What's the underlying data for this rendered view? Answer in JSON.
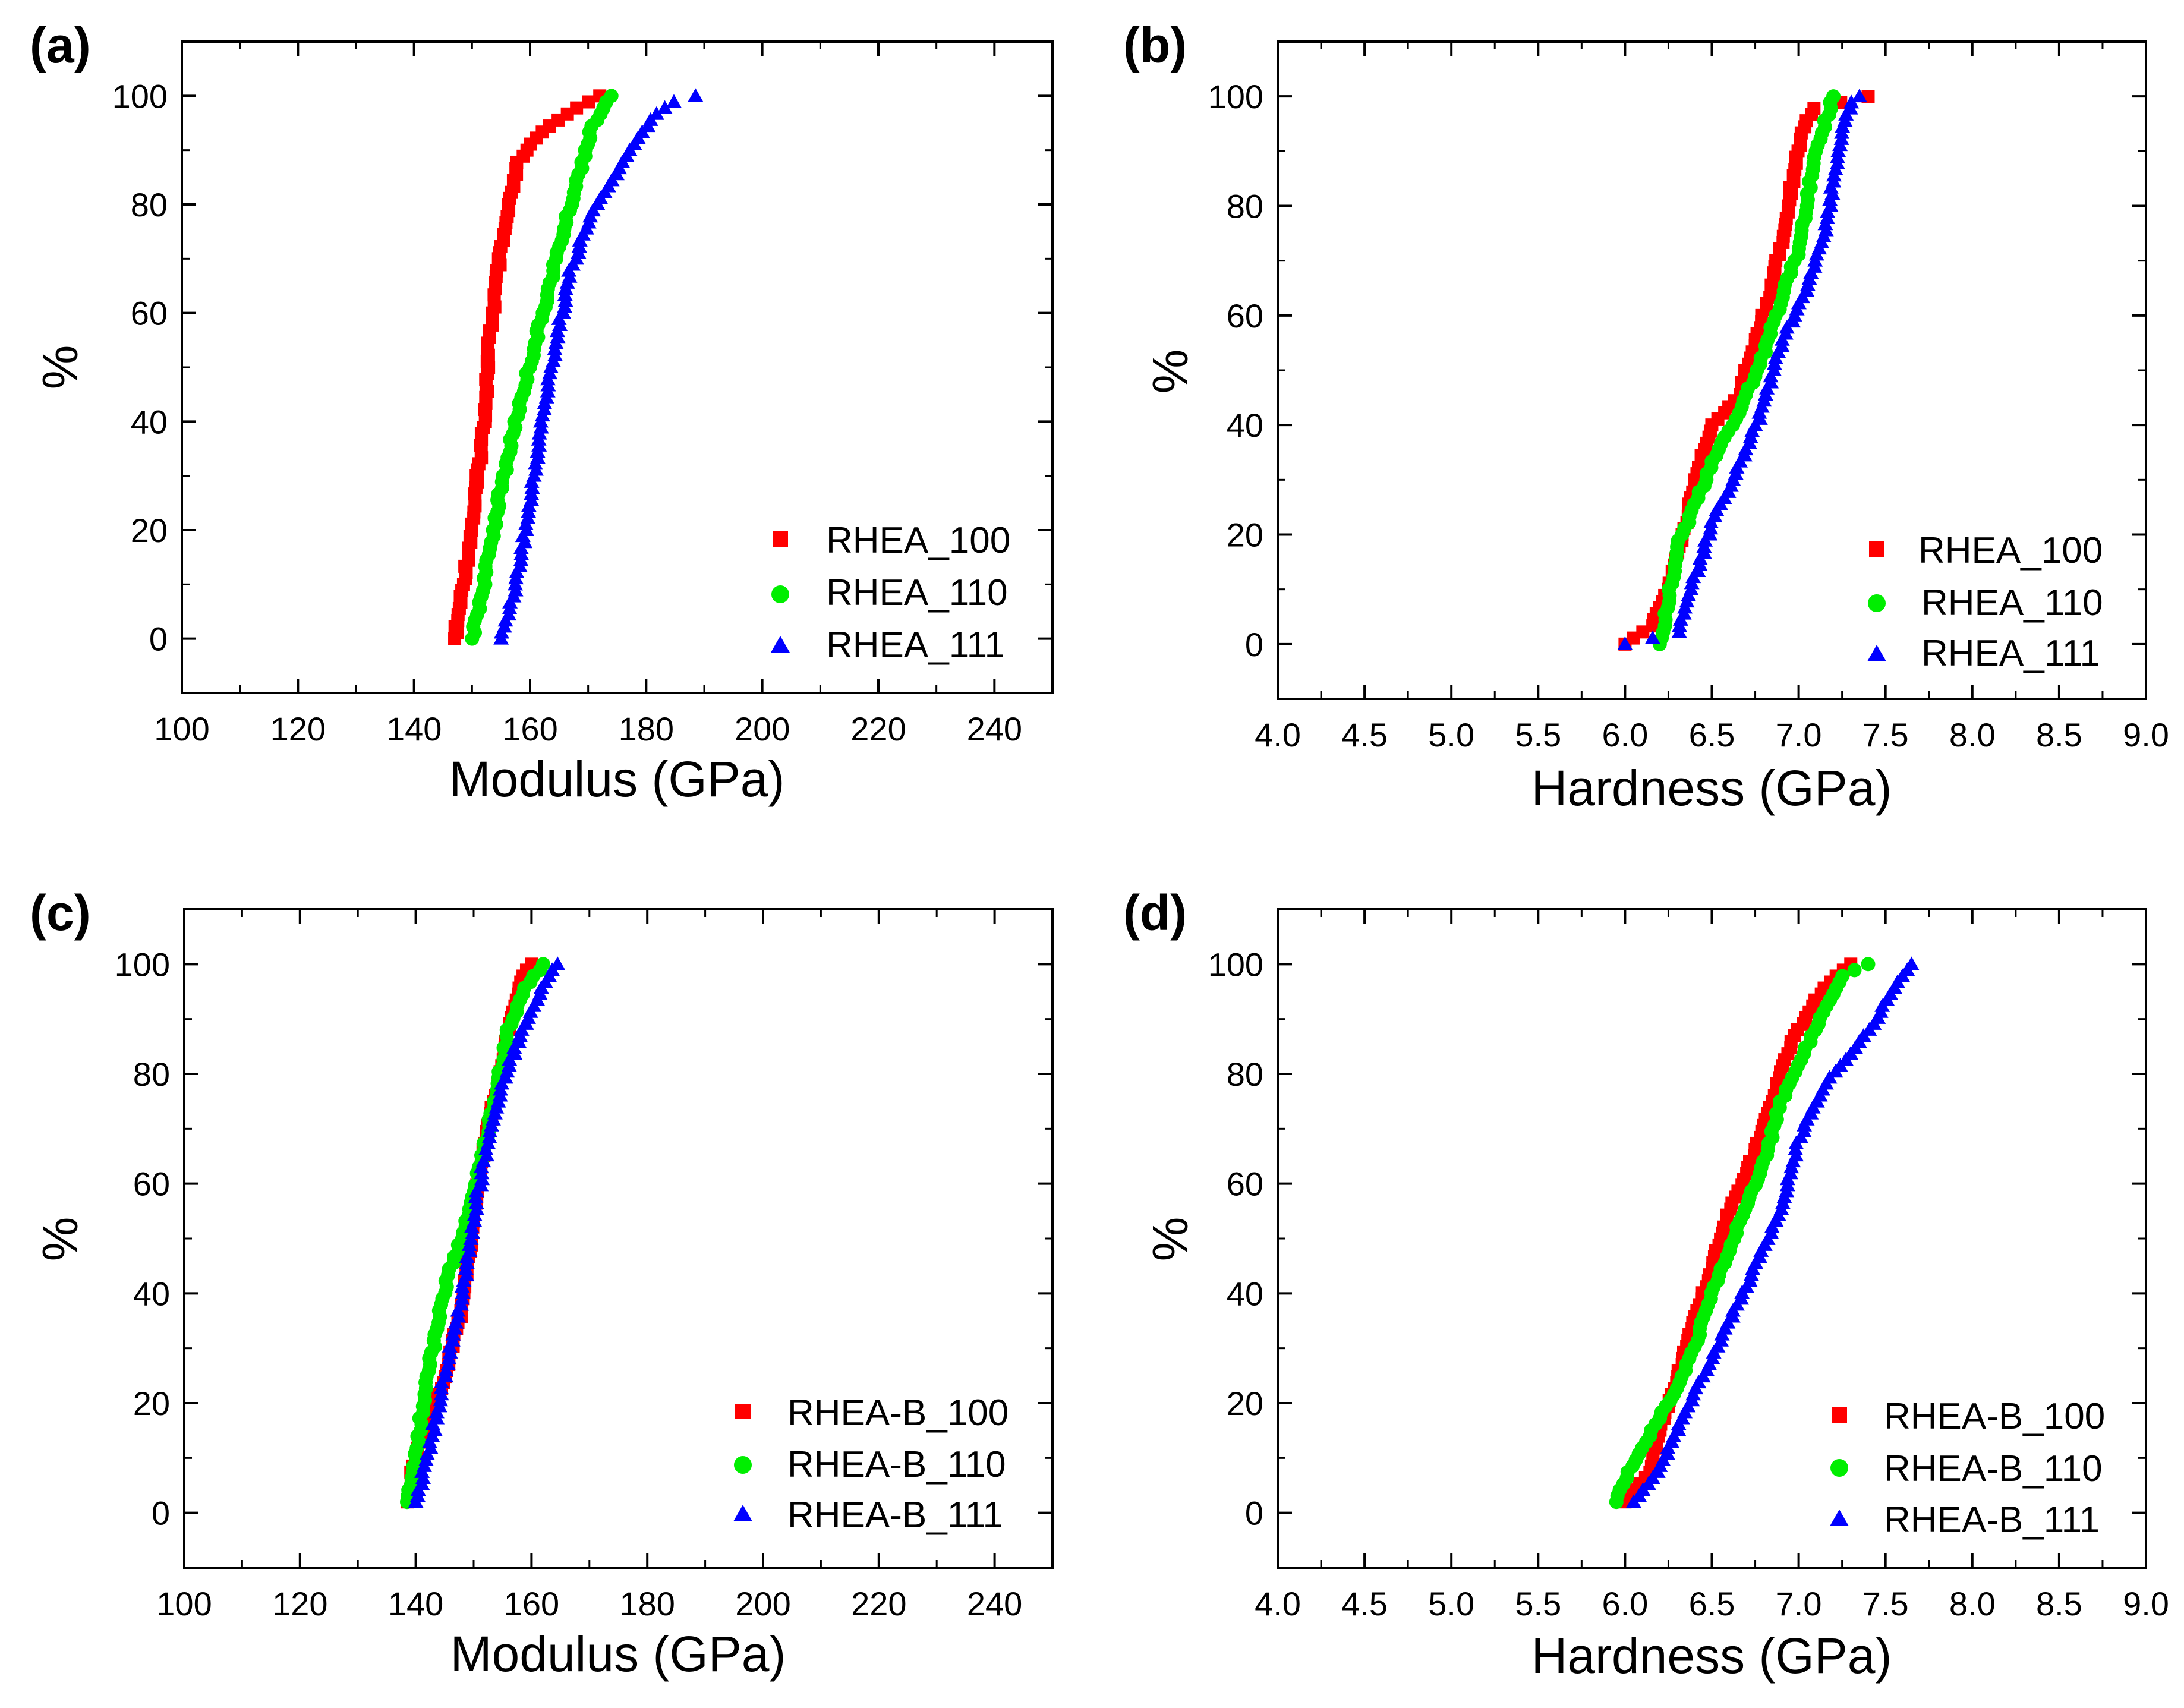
{
  "figure": {
    "colors": {
      "series1": "#ff0000",
      "series2": "#00ee00",
      "series3": "#0000ff"
    }
  },
  "chart_data": [
    {
      "panel": "(a)",
      "type": "scatter",
      "xlabel": "Modulus (GPa)",
      "ylabel": "%",
      "xlim": [
        100,
        250
      ],
      "ylim": [
        -10,
        110
      ],
      "xticks": [
        "100",
        "120",
        "140",
        "160",
        "180",
        "200",
        "220",
        "240"
      ],
      "yticks": [
        "0",
        "20",
        "40",
        "60",
        "80",
        "100"
      ],
      "xtick_values": [
        100,
        120,
        140,
        160,
        180,
        200,
        220,
        240
      ],
      "ytick_values": [
        0,
        20,
        40,
        60,
        80,
        100
      ],
      "legend_position": "bottom-right",
      "series": [
        {
          "name": "RHEA_100",
          "marker": "square",
          "color": "#ff0000",
          "curve": [
            [
              147.0,
              0
            ],
            [
              148.5,
              10
            ],
            [
              150.5,
              25
            ],
            [
              152.0,
              40
            ],
            [
              153.0,
              55
            ],
            [
              154.5,
              68
            ],
            [
              156.5,
              80
            ],
            [
              158.0,
              88
            ],
            [
              161.0,
              92
            ],
            [
              164.0,
              95
            ],
            [
              167.0,
              97
            ],
            [
              169.0,
              98.5
            ],
            [
              172.0,
              100
            ]
          ]
        },
        {
          "name": "RHEA_110",
          "marker": "circle",
          "color": "#00ee00",
          "curve": [
            [
              150.0,
              0
            ],
            [
              152.0,
              10
            ],
            [
              154.5,
              25
            ],
            [
              157.5,
              40
            ],
            [
              161.0,
              55
            ],
            [
              164.5,
              70
            ],
            [
              167.5,
              82
            ],
            [
              169.5,
              90
            ],
            [
              171.0,
              95
            ],
            [
              174.0,
              100
            ]
          ]
        },
        {
          "name": "RHEA_111",
          "marker": "triangle",
          "color": "#0000ff",
          "curve": [
            [
              155.0,
              0
            ],
            [
              157.5,
              10
            ],
            [
              160.0,
              25
            ],
            [
              162.0,
              40
            ],
            [
              164.5,
              55
            ],
            [
              167.0,
              68
            ],
            [
              170.5,
              78
            ],
            [
              175.0,
              86
            ],
            [
              178.0,
              91
            ],
            [
              181.0,
              96
            ],
            [
              185.0,
              99
            ],
            [
              188.5,
              100
            ]
          ]
        }
      ]
    },
    {
      "panel": "(b)",
      "type": "scatter",
      "xlabel": "Hardness (GPa)",
      "ylabel": "%",
      "xlim": [
        4.0,
        9.0
      ],
      "ylim": [
        -10,
        110
      ],
      "xticks": [
        "4.0",
        "4.5",
        "5.0",
        "5.5",
        "6.0",
        "6.5",
        "7.0",
        "7.5",
        "8.0",
        "8.5",
        "9.0"
      ],
      "yticks": [
        "0",
        "20",
        "40",
        "60",
        "80",
        "100"
      ],
      "xtick_values": [
        4.0,
        4.5,
        5.0,
        5.5,
        6.0,
        6.5,
        7.0,
        7.5,
        8.0,
        8.5,
        9.0
      ],
      "ytick_values": [
        0,
        20,
        40,
        60,
        80,
        100
      ],
      "legend_position": "bottom-right",
      "series": [
        {
          "name": "RHEA_100",
          "marker": "square",
          "color": "#ff0000",
          "curve": [
            [
              6.0,
              0
            ],
            [
              6.15,
              3
            ],
            [
              6.25,
              10
            ],
            [
              6.35,
              22
            ],
            [
              6.42,
              32
            ],
            [
              6.5,
              40
            ],
            [
              6.65,
              45
            ],
            [
              6.75,
              55
            ],
            [
              6.85,
              66
            ],
            [
              6.92,
              76
            ],
            [
              6.97,
              86
            ],
            [
              7.02,
              94
            ],
            [
              7.1,
              98
            ],
            [
              7.4,
              100
            ]
          ]
        },
        {
          "name": "RHEA_110",
          "marker": "circle",
          "color": "#00ee00",
          "curve": [
            [
              6.2,
              0
            ],
            [
              6.25,
              8
            ],
            [
              6.3,
              18
            ],
            [
              6.4,
              25
            ],
            [
              6.5,
              33
            ],
            [
              6.65,
              42
            ],
            [
              6.8,
              53
            ],
            [
              6.9,
              63
            ],
            [
              7.0,
              72
            ],
            [
              7.05,
              82
            ],
            [
              7.12,
              92
            ],
            [
              7.2,
              100
            ]
          ]
        },
        {
          "name": "RHEA_111",
          "marker": "triangle",
          "color": "#0000ff",
          "curve": [
            [
              6.0,
              0
            ],
            [
              6.3,
              2
            ],
            [
              6.38,
              10
            ],
            [
              6.5,
              22
            ],
            [
              6.65,
              32
            ],
            [
              6.78,
              42
            ],
            [
              6.9,
              55
            ],
            [
              7.05,
              65
            ],
            [
              7.15,
              75
            ],
            [
              7.2,
              85
            ],
            [
              7.25,
              93
            ],
            [
              7.3,
              99
            ],
            [
              7.35,
              100
            ]
          ]
        }
      ]
    },
    {
      "panel": "(c)",
      "type": "scatter",
      "xlabel": "Modulus (GPa)",
      "ylabel": "%",
      "xlim": [
        100,
        250
      ],
      "ylim": [
        -10,
        110
      ],
      "xticks": [
        "100",
        "120",
        "140",
        "160",
        "180",
        "200",
        "220",
        "240"
      ],
      "yticks": [
        "0",
        "20",
        "40",
        "60",
        "80",
        "100"
      ],
      "xtick_values": [
        100,
        120,
        140,
        160,
        180,
        200,
        220,
        240
      ],
      "ytick_values": [
        0,
        20,
        40,
        60,
        80,
        100
      ],
      "legend_position": "bottom-right",
      "series": [
        {
          "name": "RHEA-B_100",
          "marker": "square",
          "color": "#ff0000",
          "curve": [
            [
              138.5,
              2
            ],
            [
              139.5,
              8
            ],
            [
              141.5,
              15
            ],
            [
              145.0,
              25
            ],
            [
              147.5,
              35
            ],
            [
              149.0,
              45
            ],
            [
              150.0,
              55
            ],
            [
              151.5,
              65
            ],
            [
              153.5,
              75
            ],
            [
              155.5,
              85
            ],
            [
              157.0,
              92
            ],
            [
              158.5,
              98
            ],
            [
              160.0,
              100
            ]
          ]
        },
        {
          "name": "RHEA-B_110",
          "marker": "circle",
          "color": "#00ee00",
          "curve": [
            [
              138.5,
              2
            ],
            [
              140.0,
              10
            ],
            [
              141.5,
              22
            ],
            [
              143.5,
              33
            ],
            [
              145.5,
              43
            ],
            [
              148.0,
              50
            ],
            [
              150.5,
              60
            ],
            [
              152.5,
              70
            ],
            [
              154.5,
              80
            ],
            [
              156.0,
              88
            ],
            [
              158.5,
              95
            ],
            [
              162.0,
              100
            ]
          ]
        },
        {
          "name": "RHEA-B_111",
          "marker": "triangle",
          "color": "#0000ff",
          "curve": [
            [
              140.0,
              2
            ],
            [
              142.0,
              10
            ],
            [
              144.0,
              20
            ],
            [
              146.0,
              30
            ],
            [
              148.0,
              40
            ],
            [
              149.5,
              50
            ],
            [
              151.0,
              60
            ],
            [
              153.0,
              70
            ],
            [
              155.5,
              80
            ],
            [
              158.5,
              88
            ],
            [
              161.5,
              95
            ],
            [
              164.5,
              100
            ]
          ]
        }
      ]
    },
    {
      "panel": "(d)",
      "type": "scatter",
      "xlabel": "Hardness (GPa)",
      "ylabel": "%",
      "xlim": [
        4.0,
        9.0
      ],
      "ylim": [
        -10,
        110
      ],
      "xticks": [
        "4.0",
        "4.5",
        "5.0",
        "5.5",
        "6.0",
        "6.5",
        "7.0",
        "7.5",
        "8.0",
        "8.5",
        "9.0"
      ],
      "yticks": [
        "0",
        "20",
        "40",
        "60",
        "80",
        "100"
      ],
      "xtick_values": [
        4.0,
        4.5,
        5.0,
        5.5,
        6.0,
        6.5,
        7.0,
        7.5,
        8.0,
        8.5,
        9.0
      ],
      "ytick_values": [
        0,
        20,
        40,
        60,
        80,
        100
      ],
      "legend_position": "bottom-right",
      "series": [
        {
          "name": "RHEA-B_100",
          "marker": "square",
          "color": "#ff0000",
          "curve": [
            [
              6.0,
              2
            ],
            [
              6.15,
              8
            ],
            [
              6.2,
              15
            ],
            [
              6.3,
              25
            ],
            [
              6.4,
              35
            ],
            [
              6.5,
              45
            ],
            [
              6.6,
              55
            ],
            [
              6.75,
              66
            ],
            [
              6.85,
              76
            ],
            [
              6.95,
              85
            ],
            [
              7.05,
              91
            ],
            [
              7.15,
              96
            ],
            [
              7.3,
              100
            ]
          ]
        },
        {
          "name": "RHEA-B_110",
          "marker": "circle",
          "color": "#00ee00",
          "curve": [
            [
              5.95,
              2
            ],
            [
              6.0,
              6
            ],
            [
              6.1,
              12
            ],
            [
              6.25,
              20
            ],
            [
              6.4,
              30
            ],
            [
              6.5,
              40
            ],
            [
              6.65,
              52
            ],
            [
              6.8,
              64
            ],
            [
              6.9,
              75
            ],
            [
              7.05,
              85
            ],
            [
              7.15,
              92
            ],
            [
              7.25,
              98
            ],
            [
              7.4,
              100
            ]
          ]
        },
        {
          "name": "RHEA-B_111",
          "marker": "triangle",
          "color": "#0000ff",
          "curve": [
            [
              6.05,
              2
            ],
            [
              6.2,
              8
            ],
            [
              6.3,
              15
            ],
            [
              6.45,
              25
            ],
            [
              6.6,
              35
            ],
            [
              6.75,
              45
            ],
            [
              6.9,
              55
            ],
            [
              7.0,
              68
            ],
            [
              7.15,
              78
            ],
            [
              7.3,
              84
            ],
            [
              7.45,
              90
            ],
            [
              7.55,
              96
            ],
            [
              7.65,
              100
            ]
          ]
        }
      ]
    }
  ]
}
